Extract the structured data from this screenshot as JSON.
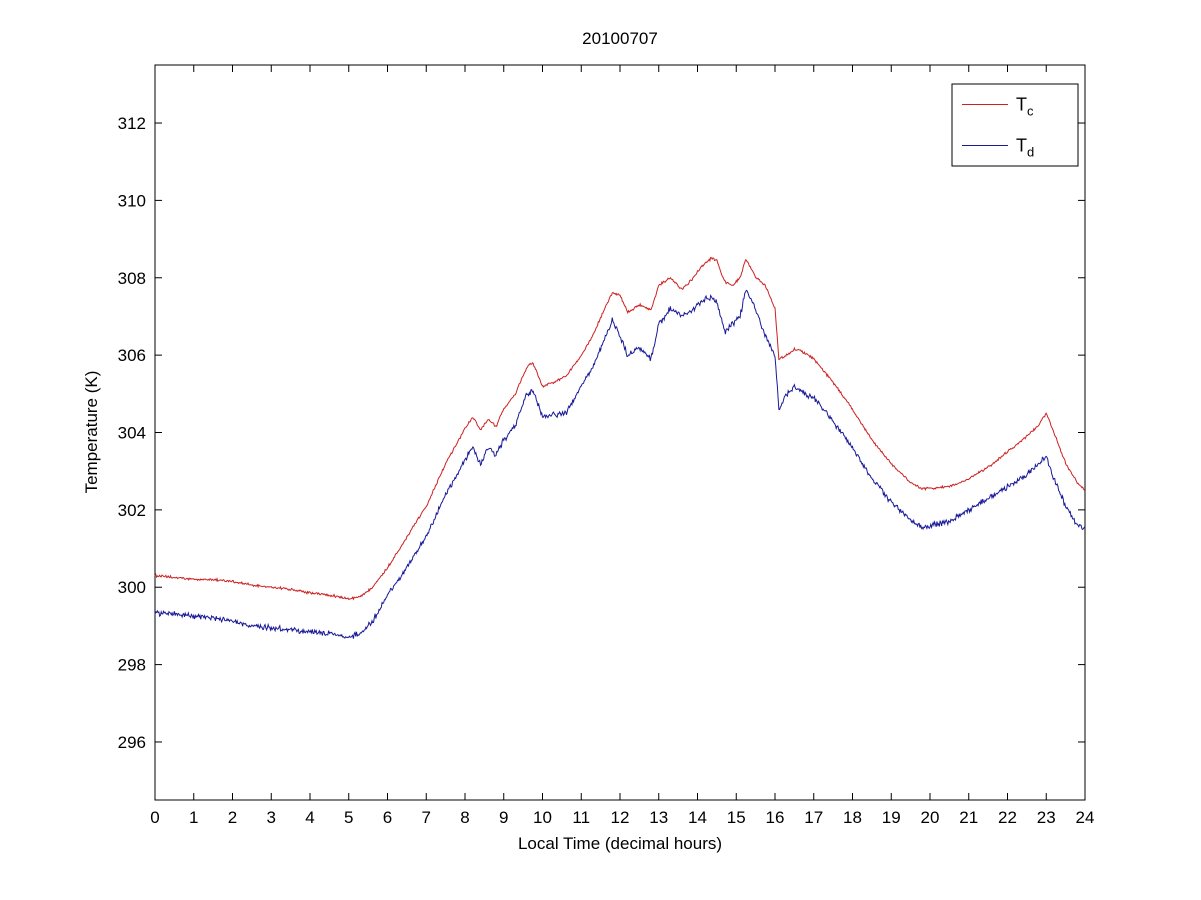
{
  "chart_data": {
    "type": "line",
    "title": "20100707",
    "xlabel": "Local Time (decimal hours)",
    "ylabel": "Temperature (K)",
    "xlim": [
      0,
      24
    ],
    "ylim": [
      294.5,
      313.5
    ],
    "xticks": [
      0,
      1,
      2,
      3,
      4,
      5,
      6,
      7,
      8,
      9,
      10,
      11,
      12,
      13,
      14,
      15,
      16,
      17,
      18,
      19,
      20,
      21,
      22,
      23,
      24
    ],
    "yticks": [
      296,
      298,
      300,
      302,
      304,
      306,
      308,
      310,
      312
    ],
    "grid": false,
    "legend": {
      "position": "top-right",
      "entries": [
        {
          "base": "T",
          "sub": "c"
        },
        {
          "base": "T",
          "sub": "d"
        }
      ]
    },
    "series": [
      {
        "name": "T_c",
        "color": "#cc2222",
        "jitter": 0.04,
        "points": [
          [
            0,
            300.3
          ],
          [
            0.5,
            300.25
          ],
          [
            1,
            300.2
          ],
          [
            1.5,
            300.2
          ],
          [
            2,
            300.15
          ],
          [
            2.5,
            300.05
          ],
          [
            3,
            300.0
          ],
          [
            3.5,
            299.95
          ],
          [
            4,
            299.85
          ],
          [
            4.5,
            299.8
          ],
          [
            5,
            299.7
          ],
          [
            5.3,
            299.75
          ],
          [
            5.6,
            300.0
          ],
          [
            6,
            300.5
          ],
          [
            6.5,
            301.3
          ],
          [
            7,
            302.1
          ],
          [
            7.5,
            303.2
          ],
          [
            8,
            304.1
          ],
          [
            8.2,
            304.4
          ],
          [
            8.4,
            304.05
          ],
          [
            8.6,
            304.35
          ],
          [
            8.8,
            304.15
          ],
          [
            9,
            304.6
          ],
          [
            9.3,
            305.0
          ],
          [
            9.6,
            305.7
          ],
          [
            9.75,
            305.8
          ],
          [
            10,
            305.2
          ],
          [
            10.3,
            305.3
          ],
          [
            10.6,
            305.45
          ],
          [
            11,
            306.0
          ],
          [
            11.3,
            306.5
          ],
          [
            11.6,
            307.2
          ],
          [
            11.8,
            307.6
          ],
          [
            12,
            307.55
          ],
          [
            12.2,
            307.1
          ],
          [
            12.5,
            307.3
          ],
          [
            12.8,
            307.15
          ],
          [
            13,
            307.8
          ],
          [
            13.3,
            308.0
          ],
          [
            13.6,
            307.7
          ],
          [
            13.9,
            308.0
          ],
          [
            14.1,
            308.3
          ],
          [
            14.35,
            308.5
          ],
          [
            14.5,
            308.45
          ],
          [
            14.7,
            307.9
          ],
          [
            14.9,
            307.8
          ],
          [
            15.1,
            308.0
          ],
          [
            15.25,
            308.5
          ],
          [
            15.5,
            308.0
          ],
          [
            15.75,
            307.8
          ],
          [
            16,
            307.2
          ],
          [
            16.1,
            305.9
          ],
          [
            16.3,
            306.0
          ],
          [
            16.5,
            306.15
          ],
          [
            16.7,
            306.1
          ],
          [
            17,
            305.9
          ],
          [
            17.5,
            305.3
          ],
          [
            18,
            304.6
          ],
          [
            18.5,
            303.8
          ],
          [
            19,
            303.2
          ],
          [
            19.5,
            302.7
          ],
          [
            19.8,
            302.55
          ],
          [
            20,
            302.55
          ],
          [
            20.5,
            302.6
          ],
          [
            21,
            302.8
          ],
          [
            21.5,
            303.1
          ],
          [
            22,
            303.5
          ],
          [
            22.5,
            303.9
          ],
          [
            22.8,
            304.2
          ],
          [
            23,
            304.5
          ],
          [
            23.2,
            304.0
          ],
          [
            23.5,
            303.2
          ],
          [
            23.8,
            302.7
          ],
          [
            24,
            302.5
          ]
        ]
      },
      {
        "name": "T_d",
        "color": "#1a1a99",
        "jitter": 0.09,
        "points": [
          [
            0,
            299.35
          ],
          [
            0.5,
            299.3
          ],
          [
            1,
            299.25
          ],
          [
            1.5,
            299.2
          ],
          [
            2,
            299.1
          ],
          [
            2.5,
            299.0
          ],
          [
            3,
            298.95
          ],
          [
            3.5,
            298.9
          ],
          [
            4,
            298.85
          ],
          [
            4.5,
            298.8
          ],
          [
            5,
            298.7
          ],
          [
            5.3,
            298.8
          ],
          [
            5.6,
            299.1
          ],
          [
            6,
            299.8
          ],
          [
            6.5,
            300.5
          ],
          [
            7,
            301.3
          ],
          [
            7.5,
            302.4
          ],
          [
            8,
            303.3
          ],
          [
            8.2,
            303.6
          ],
          [
            8.4,
            303.2
          ],
          [
            8.6,
            303.6
          ],
          [
            8.8,
            303.4
          ],
          [
            9,
            303.8
          ],
          [
            9.3,
            304.2
          ],
          [
            9.6,
            305.0
          ],
          [
            9.75,
            305.1
          ],
          [
            10,
            304.4
          ],
          [
            10.3,
            304.45
          ],
          [
            10.6,
            304.5
          ],
          [
            11,
            305.2
          ],
          [
            11.3,
            305.7
          ],
          [
            11.6,
            306.4
          ],
          [
            11.8,
            306.9
          ],
          [
            12,
            306.5
          ],
          [
            12.2,
            306.0
          ],
          [
            12.5,
            306.2
          ],
          [
            12.8,
            305.9
          ],
          [
            13,
            306.8
          ],
          [
            13.3,
            307.2
          ],
          [
            13.6,
            307.0
          ],
          [
            13.9,
            307.2
          ],
          [
            14.1,
            307.4
          ],
          [
            14.35,
            307.5
          ],
          [
            14.5,
            307.4
          ],
          [
            14.7,
            306.6
          ],
          [
            14.9,
            306.8
          ],
          [
            15.1,
            307.0
          ],
          [
            15.25,
            307.7
          ],
          [
            15.5,
            307.2
          ],
          [
            15.75,
            306.5
          ],
          [
            16,
            306.0
          ],
          [
            16.1,
            304.6
          ],
          [
            16.3,
            305.0
          ],
          [
            16.5,
            305.2
          ],
          [
            16.7,
            305.0
          ],
          [
            17,
            304.9
          ],
          [
            17.5,
            304.3
          ],
          [
            18,
            303.6
          ],
          [
            18.5,
            302.8
          ],
          [
            19,
            302.2
          ],
          [
            19.5,
            301.7
          ],
          [
            19.8,
            301.55
          ],
          [
            20,
            301.6
          ],
          [
            20.5,
            301.7
          ],
          [
            21,
            302.0
          ],
          [
            21.5,
            302.3
          ],
          [
            22,
            302.6
          ],
          [
            22.5,
            302.9
          ],
          [
            22.8,
            303.2
          ],
          [
            23,
            303.4
          ],
          [
            23.2,
            302.8
          ],
          [
            23.5,
            302.1
          ],
          [
            23.8,
            301.6
          ],
          [
            24,
            301.5
          ]
        ]
      }
    ]
  }
}
